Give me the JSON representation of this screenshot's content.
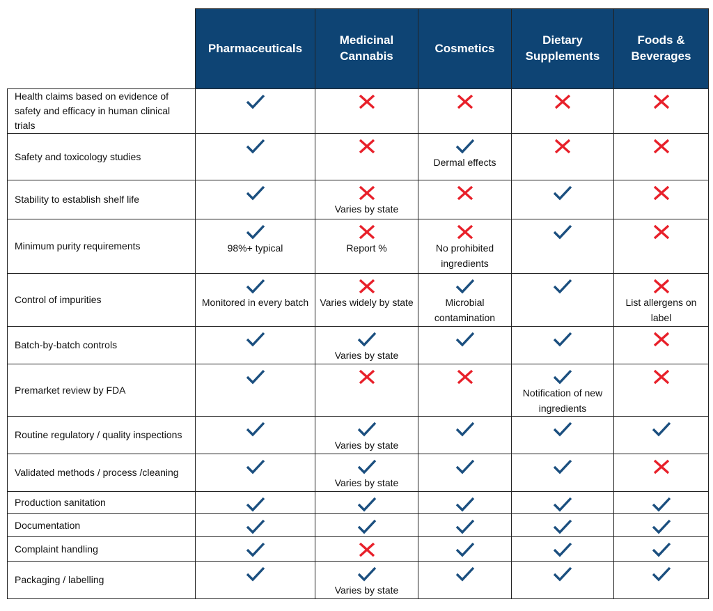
{
  "columns": [
    "Pharmaceuticals",
    "Medicinal Cannabis",
    "Cosmetics",
    "Dietary Supplements",
    "Foods & Beverages"
  ],
  "colors": {
    "header_bg": "#0e4474",
    "check": "#1b4f7f",
    "cross": "#e8202a"
  },
  "icons": {
    "yes": "check-icon",
    "no": "cross-icon"
  },
  "rows": [
    {
      "label": "Health claims based on evidence of safety and efficacy in human clinical trials",
      "cells": [
        {
          "mark": "yes",
          "note": ""
        },
        {
          "mark": "no",
          "note": ""
        },
        {
          "mark": "no",
          "note": ""
        },
        {
          "mark": "no",
          "note": ""
        },
        {
          "mark": "no",
          "note": ""
        }
      ]
    },
    {
      "label": "Safety and toxicology studies",
      "cells": [
        {
          "mark": "yes",
          "note": ""
        },
        {
          "mark": "no",
          "note": ""
        },
        {
          "mark": "yes",
          "note": "Dermal effects"
        },
        {
          "mark": "no",
          "note": ""
        },
        {
          "mark": "no",
          "note": ""
        }
      ]
    },
    {
      "label": "Stability to establish shelf life",
      "cells": [
        {
          "mark": "yes",
          "note": ""
        },
        {
          "mark": "no",
          "note": "Varies by state"
        },
        {
          "mark": "no",
          "note": ""
        },
        {
          "mark": "yes",
          "note": ""
        },
        {
          "mark": "no",
          "note": ""
        }
      ]
    },
    {
      "label": "Minimum purity requirements",
      "cells": [
        {
          "mark": "yes",
          "note": "98%+ typical"
        },
        {
          "mark": "no",
          "note": "Report %"
        },
        {
          "mark": "no",
          "note": "No prohibited ingredients"
        },
        {
          "mark": "yes",
          "note": ""
        },
        {
          "mark": "no",
          "note": ""
        }
      ]
    },
    {
      "label": "Control of impurities",
      "cells": [
        {
          "mark": "yes",
          "note": "Monitored in every batch"
        },
        {
          "mark": "no",
          "note": "Varies widely by state"
        },
        {
          "mark": "yes",
          "note": "Microbial contamination"
        },
        {
          "mark": "yes",
          "note": ""
        },
        {
          "mark": "no",
          "note": "List allergens on label"
        }
      ]
    },
    {
      "label": "Batch-by-batch controls",
      "cells": [
        {
          "mark": "yes",
          "note": ""
        },
        {
          "mark": "yes",
          "note": "Varies by state"
        },
        {
          "mark": "yes",
          "note": ""
        },
        {
          "mark": "yes",
          "note": ""
        },
        {
          "mark": "no",
          "note": ""
        }
      ]
    },
    {
      "label": "Premarket review by FDA",
      "cells": [
        {
          "mark": "yes",
          "note": ""
        },
        {
          "mark": "no",
          "note": ""
        },
        {
          "mark": "no",
          "note": ""
        },
        {
          "mark": "yes",
          "note": "Notification of new ingredients"
        },
        {
          "mark": "no",
          "note": ""
        }
      ]
    },
    {
      "label": "Routine regulatory / quality inspections",
      "cells": [
        {
          "mark": "yes",
          "note": ""
        },
        {
          "mark": "yes",
          "note": "Varies by state"
        },
        {
          "mark": "yes",
          "note": ""
        },
        {
          "mark": "yes",
          "note": ""
        },
        {
          "mark": "yes",
          "note": ""
        }
      ]
    },
    {
      "label": "Validated methods / process /cleaning",
      "cells": [
        {
          "mark": "yes",
          "note": ""
        },
        {
          "mark": "yes",
          "note": "Varies by state"
        },
        {
          "mark": "yes",
          "note": ""
        },
        {
          "mark": "yes",
          "note": ""
        },
        {
          "mark": "no",
          "note": ""
        }
      ]
    },
    {
      "label": "Production sanitation",
      "cells": [
        {
          "mark": "yes",
          "note": ""
        },
        {
          "mark": "yes",
          "note": ""
        },
        {
          "mark": "yes",
          "note": ""
        },
        {
          "mark": "yes",
          "note": ""
        },
        {
          "mark": "yes",
          "note": ""
        }
      ]
    },
    {
      "label": "Documentation",
      "cells": [
        {
          "mark": "yes",
          "note": ""
        },
        {
          "mark": "yes",
          "note": ""
        },
        {
          "mark": "yes",
          "note": ""
        },
        {
          "mark": "yes",
          "note": ""
        },
        {
          "mark": "yes",
          "note": ""
        }
      ]
    },
    {
      "label": "Complaint handling",
      "cells": [
        {
          "mark": "yes",
          "note": ""
        },
        {
          "mark": "no",
          "note": ""
        },
        {
          "mark": "yes",
          "note": ""
        },
        {
          "mark": "yes",
          "note": ""
        },
        {
          "mark": "yes",
          "note": ""
        }
      ]
    },
    {
      "label": "Packaging / labelling",
      "cells": [
        {
          "mark": "yes",
          "note": ""
        },
        {
          "mark": "yes",
          "note": "Varies by state"
        },
        {
          "mark": "yes",
          "note": ""
        },
        {
          "mark": "yes",
          "note": ""
        },
        {
          "mark": "yes",
          "note": ""
        }
      ]
    }
  ]
}
